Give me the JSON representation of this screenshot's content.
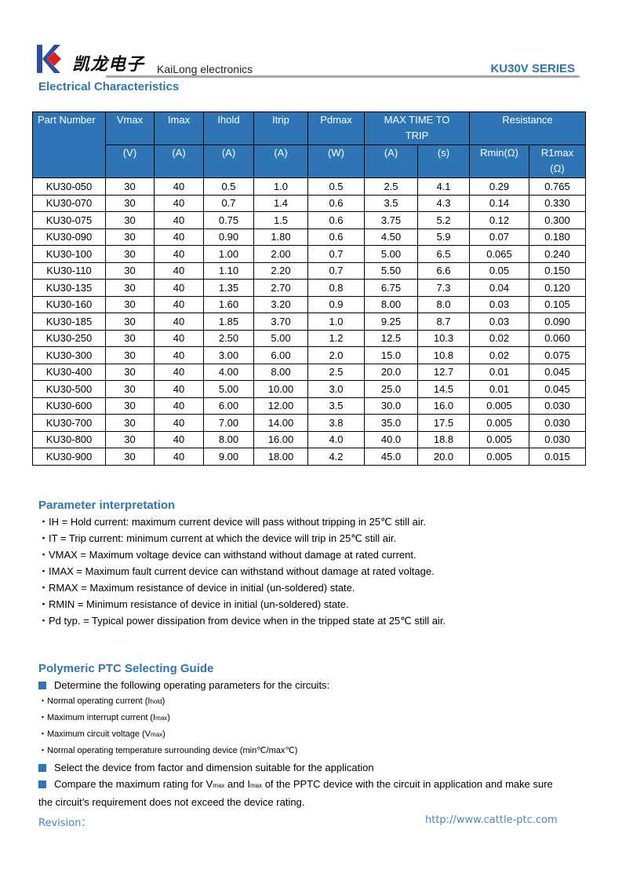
{
  "header": {
    "logo_text": "凯龙电子",
    "brand": "KaiLong electronics",
    "series": "KU30V SERIES",
    "colors": {
      "accent": "#2e75b6",
      "logo_red": "#e02020"
    }
  },
  "section1": {
    "title": "Electrical Characteristics"
  },
  "table": {
    "h1": [
      "Part Number",
      "Vmax",
      "Imax",
      "Ihold",
      "Itrip",
      "Pdmax",
      "MAX TIME TO TRIP",
      "Resistance"
    ],
    "h2": [
      "(V)",
      "(A)",
      "(A)",
      "(A)",
      "(W)",
      "(A)",
      "(s)",
      "Rmin(Ω)",
      "R1max (Ω)"
    ],
    "rows": [
      [
        "KU30-050",
        "30",
        "40",
        "0.5",
        "1.0",
        "0.5",
        "2.5",
        "4.1",
        "0.29",
        "0.765"
      ],
      [
        "KU30-070",
        "30",
        "40",
        "0.7",
        "1.4",
        "0.6",
        "3.5",
        "4.3",
        "0.14",
        "0.330"
      ],
      [
        "KU30-075",
        "30",
        "40",
        "0.75",
        "1.5",
        "0.6",
        "3.75",
        "5.2",
        "0.12",
        "0.300"
      ],
      [
        "KU30-090",
        "30",
        "40",
        "0.90",
        "1.80",
        "0.6",
        "4.50",
        "5.9",
        "0.07",
        "0.180"
      ],
      [
        "KU30-100",
        "30",
        "40",
        "1.00",
        "2.00",
        "0.7",
        "5.00",
        "6.5",
        "0.065",
        "0.240"
      ],
      [
        "KU30-110",
        "30",
        "40",
        "1.10",
        "2.20",
        "0.7",
        "5.50",
        "6.6",
        "0.05",
        "0.150"
      ],
      [
        "KU30-135",
        "30",
        "40",
        "1.35",
        "2.70",
        "0.8",
        "6.75",
        "7.3",
        "0.04",
        "0.120"
      ],
      [
        "KU30-160",
        "30",
        "40",
        "1.60",
        "3.20",
        "0.9",
        "8.00",
        "8.0",
        "0.03",
        "0.105"
      ],
      [
        "KU30-185",
        "30",
        "40",
        "1.85",
        "3.70",
        "1.0",
        "9.25",
        "8.7",
        "0.03",
        "0.090"
      ],
      [
        "KU30-250",
        "30",
        "40",
        "2.50",
        "5.00",
        "1.2",
        "12.5",
        "10.3",
        "0.02",
        "0.060"
      ],
      [
        "KU30-300",
        "30",
        "40",
        "3.00",
        "6.00",
        "2.0",
        "15.0",
        "10.8",
        "0.02",
        "0.075"
      ],
      [
        "KU30-400",
        "30",
        "40",
        "4.00",
        "8.00",
        "2.5",
        "20.0",
        "12.7",
        "0.01",
        "0.045"
      ],
      [
        "KU30-500",
        "30",
        "40",
        "5.00",
        "10.00",
        "3.0",
        "25.0",
        "14.5",
        "0.01",
        "0.045"
      ],
      [
        "KU30-600",
        "30",
        "40",
        "6.00",
        "12.00",
        "3.5",
        "30.0",
        "16.0",
        "0.005",
        "0.030"
      ],
      [
        "KU30-700",
        "30",
        "40",
        "7.00",
        "14.00",
        "3.8",
        "35.0",
        "17.5",
        "0.005",
        "0.030"
      ],
      [
        "KU30-800",
        "30",
        "40",
        "8.00",
        "16.00",
        "4.0",
        "40.0",
        "18.8",
        "0.005",
        "0.030"
      ],
      [
        "KU30-900",
        "30",
        "40",
        "9.00",
        "18.00",
        "4.2",
        "45.0",
        "20.0",
        "0.005",
        "0.015"
      ]
    ]
  },
  "section2": {
    "title": "Parameter interpretation",
    "items": [
      "・IH = Hold current: maximum current device will pass without tripping in 25℃  still air.",
      "・IT = Trip current: minimum current at which the device will trip in 25℃  still air.",
      "・VMAX = Maximum voltage device can withstand without damage at rated current.",
      "・IMAX = Maximum fault current device can withstand without damage at rated voltage.",
      "・RMAX = Maximum resistance of device in initial (un-soldered) state.",
      "・RMIN = Minimum resistance of device in initial (un-soldered) state.",
      "・Pd typ. = Typical power dissipation from device when in the tripped state at 25℃  still air."
    ]
  },
  "section3": {
    "title": "Polymeric PTC Selecting Guide",
    "step1": "Determine the following operating parameters for the circuits:",
    "sub": [
      {
        "text": "・Normal operating current (I",
        "sub": "hold",
        "end": ")"
      },
      {
        "text": "・Maximum interrupt current (I",
        "sub": "max",
        "end": ")"
      },
      {
        "text": "・Maximum circuit voltage (V",
        "sub": "max",
        "end": ")"
      },
      {
        "text": "・Normal operating temperature surrounding device (min℃/max℃)",
        "sub": "",
        "end": ""
      }
    ],
    "step2": "Select the device from factor and dimension suitable for the application",
    "step3a": "Compare the maximum rating for V",
    "step3_sub1": "max",
    "step3b": " and I",
    "step3_sub2": "max",
    "step3c": " of the PPTC device with the circuit in application and make sure",
    "step3d": "the circuit’s requirement does not exceed the device rating."
  },
  "footer": {
    "revision": "Revision：",
    "url": "http://www.cattle-ptc.com"
  }
}
